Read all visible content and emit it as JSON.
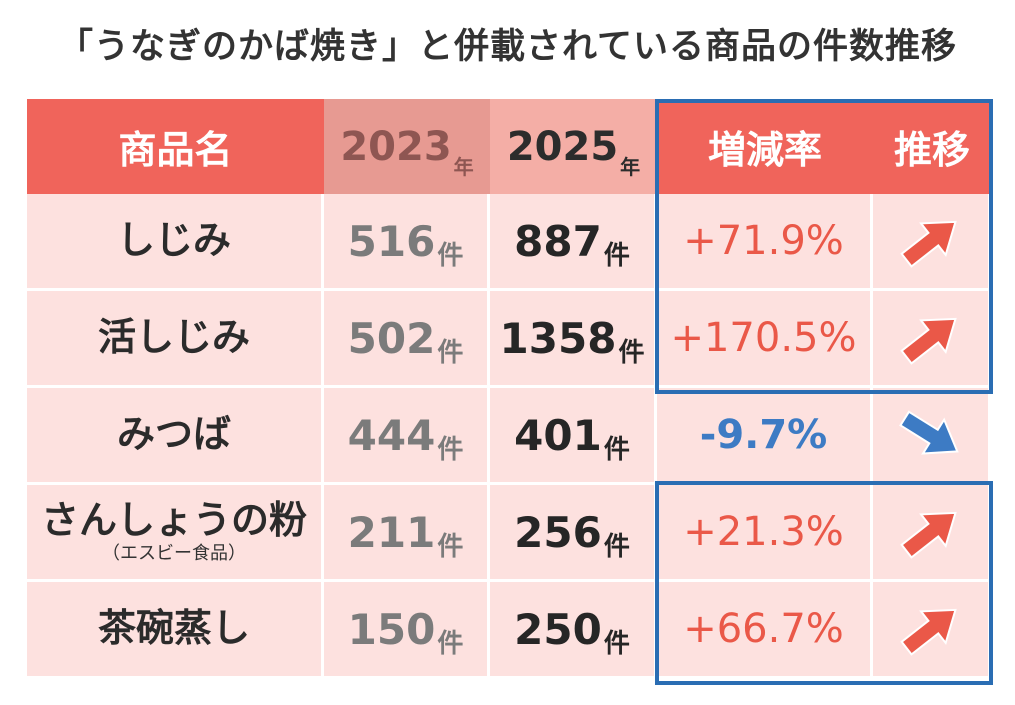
{
  "title": "「うなぎのかば焼き」と併載されている商品の件数推移",
  "colors": {
    "header": "#f0645b",
    "up": "#ea5848",
    "down": "#3d7bc4",
    "frame": "#2a6db3",
    "row_bg": "#fde1df"
  },
  "headers": {
    "name": "商品名",
    "y2023_num": "2023",
    "y2023_unit": "年",
    "y2025_num": "2025",
    "y2025_unit": "年",
    "rate": "増減率",
    "trend": "推移"
  },
  "count_unit": "件",
  "chart_data": {
    "type": "table",
    "columns": [
      "商品名",
      "2023年",
      "2025年",
      "増減率",
      "推移"
    ],
    "rows": [
      {
        "name": "しじみ",
        "sub": "",
        "y2023": "516",
        "y2025": "887",
        "rate": "+71.9%",
        "trend": "up"
      },
      {
        "name": "活しじみ",
        "sub": "",
        "y2023": "502",
        "y2025": "1358",
        "rate": "+170.5%",
        "trend": "up"
      },
      {
        "name": "みつば",
        "sub": "",
        "y2023": "444",
        "y2025": "401",
        "rate": "-9.7%",
        "trend": "down"
      },
      {
        "name": "さんしょうの粉",
        "sub": "（エスビー食品）",
        "y2023": "211",
        "y2025": "256",
        "rate": "+21.3%",
        "trend": "up"
      },
      {
        "name": "茶碗蒸し",
        "sub": "",
        "y2023": "150",
        "y2025": "250",
        "rate": "+66.7%",
        "trend": "up"
      }
    ],
    "highlighted_rows": [
      [
        0,
        1
      ],
      [
        3,
        4
      ]
    ]
  }
}
